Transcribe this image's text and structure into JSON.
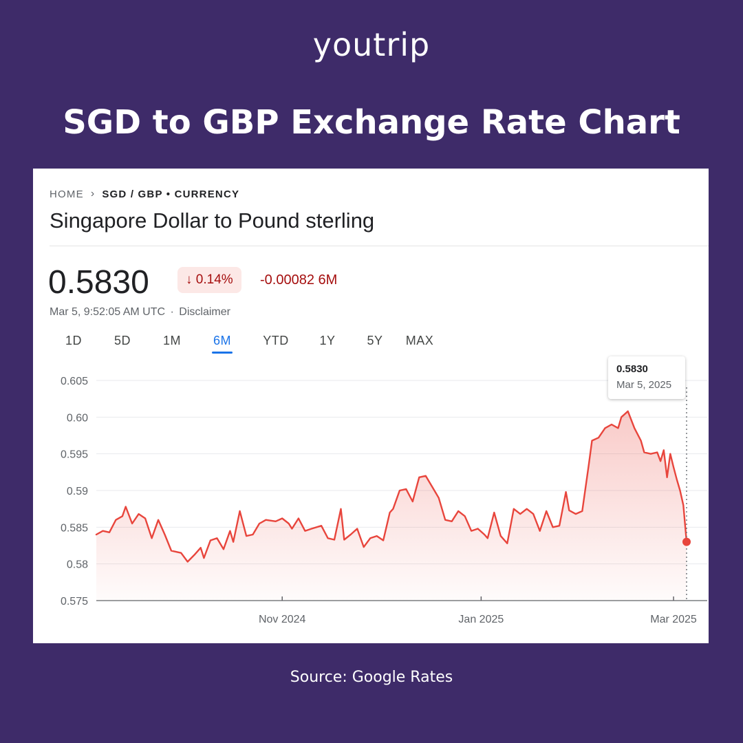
{
  "brand": {
    "logo_text": "youtrip"
  },
  "headline": "SGD to GBP Exchange Rate Chart",
  "breadcrumb": {
    "home": "HOME",
    "current": "SGD / GBP • CURRENCY"
  },
  "page_title": "Singapore Dollar to Pound sterling",
  "quote": {
    "price": "0.5830",
    "change_percent": "↓ 0.14%",
    "change_abs": "-0.00082 6M",
    "timestamp": "Mar 5, 9:52:05 AM UTC",
    "separator": "·",
    "disclaimer": "Disclaimer"
  },
  "range_tabs": [
    "1D",
    "5D",
    "1M",
    "6M",
    "YTD",
    "1Y",
    "5Y",
    "MAX"
  ],
  "active_tab": "6M",
  "tooltip": {
    "value": "0.5830",
    "date": "Mar 5, 2025"
  },
  "colors": {
    "line": "#e8453c",
    "down": "#a50e0e",
    "accent": "#1a73e8",
    "background": "#3e2b69"
  },
  "chart_data": {
    "type": "area",
    "ylim": [
      0.575,
      0.605
    ],
    "yticks": [
      0.605,
      0.6,
      0.595,
      0.59,
      0.585,
      0.58,
      0.575
    ],
    "ytick_labels": [
      "0.605",
      "0.60",
      "0.595",
      "0.59",
      "0.585",
      "0.58",
      "0.575"
    ],
    "xlim": [
      "2024-09-05",
      "2025-03-05"
    ],
    "xticks": [
      {
        "label": "Nov 2024",
        "date": "2024-11-01"
      },
      {
        "label": "Jan 2025",
        "date": "2025-01-01"
      },
      {
        "label": "Mar 2025",
        "date": "2025-03-01"
      }
    ],
    "grid": true,
    "legend": "none",
    "series": [
      {
        "points": [
          [
            "2024-09-05",
            0.584
          ],
          [
            "2024-09-07",
            0.5845
          ],
          [
            "2024-09-09",
            0.5843
          ],
          [
            "2024-09-11",
            0.586
          ],
          [
            "2024-09-13",
            0.5865
          ],
          [
            "2024-09-14",
            0.5878
          ],
          [
            "2024-09-16",
            0.5855
          ],
          [
            "2024-09-18",
            0.5868
          ],
          [
            "2024-09-20",
            0.5862
          ],
          [
            "2024-09-22",
            0.5835
          ],
          [
            "2024-09-24",
            0.586
          ],
          [
            "2024-09-26",
            0.584
          ],
          [
            "2024-09-28",
            0.5818
          ],
          [
            "2024-10-01",
            0.5815
          ],
          [
            "2024-10-03",
            0.5803
          ],
          [
            "2024-10-05",
            0.5812
          ],
          [
            "2024-10-07",
            0.5822
          ],
          [
            "2024-10-08",
            0.5808
          ],
          [
            "2024-10-10",
            0.5832
          ],
          [
            "2024-10-12",
            0.5835
          ],
          [
            "2024-10-14",
            0.582
          ],
          [
            "2024-10-16",
            0.5845
          ],
          [
            "2024-10-17",
            0.583
          ],
          [
            "2024-10-19",
            0.5872
          ],
          [
            "2024-10-21",
            0.5838
          ],
          [
            "2024-10-23",
            0.584
          ],
          [
            "2024-10-25",
            0.5855
          ],
          [
            "2024-10-27",
            0.586
          ],
          [
            "2024-10-30",
            0.5858
          ],
          [
            "2024-11-01",
            0.5862
          ],
          [
            "2024-11-03",
            0.5855
          ],
          [
            "2024-11-04",
            0.5848
          ],
          [
            "2024-11-06",
            0.5862
          ],
          [
            "2024-11-08",
            0.5845
          ],
          [
            "2024-11-10",
            0.5848
          ],
          [
            "2024-11-13",
            0.5852
          ],
          [
            "2024-11-15",
            0.5835
          ],
          [
            "2024-11-17",
            0.5833
          ],
          [
            "2024-11-19",
            0.5875
          ],
          [
            "2024-11-20",
            0.5833
          ],
          [
            "2024-11-22",
            0.584
          ],
          [
            "2024-11-24",
            0.5848
          ],
          [
            "2024-11-26",
            0.5823
          ],
          [
            "2024-11-28",
            0.5835
          ],
          [
            "2024-11-30",
            0.5838
          ],
          [
            "2024-12-02",
            0.5832
          ],
          [
            "2024-12-04",
            0.587
          ],
          [
            "2024-12-05",
            0.5875
          ],
          [
            "2024-12-07",
            0.59
          ],
          [
            "2024-12-09",
            0.5902
          ],
          [
            "2024-12-11",
            0.5885
          ],
          [
            "2024-12-13",
            0.5918
          ],
          [
            "2024-12-15",
            0.592
          ],
          [
            "2024-12-17",
            0.5905
          ],
          [
            "2024-12-19",
            0.589
          ],
          [
            "2024-12-21",
            0.586
          ],
          [
            "2024-12-23",
            0.5858
          ],
          [
            "2024-12-25",
            0.5872
          ],
          [
            "2024-12-27",
            0.5865
          ],
          [
            "2024-12-29",
            0.5845
          ],
          [
            "2024-12-31",
            0.5848
          ],
          [
            "2025-01-02",
            0.584
          ],
          [
            "2025-01-03",
            0.5835
          ],
          [
            "2025-01-05",
            0.587
          ],
          [
            "2025-01-07",
            0.5838
          ],
          [
            "2025-01-09",
            0.5828
          ],
          [
            "2025-01-11",
            0.5875
          ],
          [
            "2025-01-13",
            0.5868
          ],
          [
            "2025-01-15",
            0.5875
          ],
          [
            "2025-01-17",
            0.5868
          ],
          [
            "2025-01-19",
            0.5845
          ],
          [
            "2025-01-21",
            0.5872
          ],
          [
            "2025-01-23",
            0.585
          ],
          [
            "2025-01-25",
            0.5852
          ],
          [
            "2025-01-27",
            0.5898
          ],
          [
            "2025-01-28",
            0.5873
          ],
          [
            "2025-01-30",
            0.5868
          ],
          [
            "2025-02-01",
            0.5872
          ],
          [
            "2025-02-03",
            0.5935
          ],
          [
            "2025-02-04",
            0.5968
          ],
          [
            "2025-02-06",
            0.5972
          ],
          [
            "2025-02-08",
            0.5985
          ],
          [
            "2025-02-10",
            0.599
          ],
          [
            "2025-02-12",
            0.5985
          ],
          [
            "2025-02-13",
            0.6
          ],
          [
            "2025-02-15",
            0.6008
          ],
          [
            "2025-02-17",
            0.5985
          ],
          [
            "2025-02-19",
            0.5968
          ],
          [
            "2025-02-20",
            0.5952
          ],
          [
            "2025-02-22",
            0.595
          ],
          [
            "2025-02-24",
            0.5952
          ],
          [
            "2025-02-25",
            0.594
          ],
          [
            "2025-02-26",
            0.5955
          ],
          [
            "2025-02-27",
            0.5918
          ],
          [
            "2025-02-28",
            0.595
          ],
          [
            "2025-03-01",
            0.5932
          ],
          [
            "2025-03-02",
            0.5915
          ],
          [
            "2025-03-03",
            0.59
          ],
          [
            "2025-03-04",
            0.588
          ],
          [
            "2025-03-05",
            0.583
          ]
        ]
      }
    ],
    "last_point": {
      "date": "2025-03-05",
      "value": 0.583
    }
  },
  "source": "Source: Google Rates"
}
